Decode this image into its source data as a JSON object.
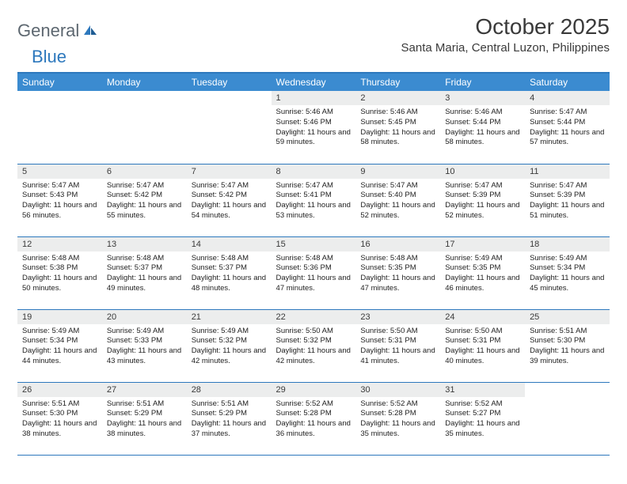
{
  "logo": {
    "part1": "General",
    "part2": "Blue"
  },
  "title": "October 2025",
  "location": "Santa Maria, Central Luzon, Philippines",
  "colors": {
    "header_bg": "#3b8bd0",
    "header_text": "#ffffff",
    "border": "#2d78bd",
    "daynum_bg": "#eceded",
    "text": "#3a3a3a",
    "logo_gray": "#5d6770",
    "logo_blue": "#2d78bd"
  },
  "week_headers": [
    "Sunday",
    "Monday",
    "Tuesday",
    "Wednesday",
    "Thursday",
    "Friday",
    "Saturday"
  ],
  "weeks": [
    [
      null,
      null,
      null,
      {
        "n": "1",
        "sunrise": "5:46 AM",
        "sunset": "5:46 PM",
        "daylight": "11 hours and 59 minutes."
      },
      {
        "n": "2",
        "sunrise": "5:46 AM",
        "sunset": "5:45 PM",
        "daylight": "11 hours and 58 minutes."
      },
      {
        "n": "3",
        "sunrise": "5:46 AM",
        "sunset": "5:44 PM",
        "daylight": "11 hours and 58 minutes."
      },
      {
        "n": "4",
        "sunrise": "5:47 AM",
        "sunset": "5:44 PM",
        "daylight": "11 hours and 57 minutes."
      }
    ],
    [
      {
        "n": "5",
        "sunrise": "5:47 AM",
        "sunset": "5:43 PM",
        "daylight": "11 hours and 56 minutes."
      },
      {
        "n": "6",
        "sunrise": "5:47 AM",
        "sunset": "5:42 PM",
        "daylight": "11 hours and 55 minutes."
      },
      {
        "n": "7",
        "sunrise": "5:47 AM",
        "sunset": "5:42 PM",
        "daylight": "11 hours and 54 minutes."
      },
      {
        "n": "8",
        "sunrise": "5:47 AM",
        "sunset": "5:41 PM",
        "daylight": "11 hours and 53 minutes."
      },
      {
        "n": "9",
        "sunrise": "5:47 AM",
        "sunset": "5:40 PM",
        "daylight": "11 hours and 52 minutes."
      },
      {
        "n": "10",
        "sunrise": "5:47 AM",
        "sunset": "5:39 PM",
        "daylight": "11 hours and 52 minutes."
      },
      {
        "n": "11",
        "sunrise": "5:47 AM",
        "sunset": "5:39 PM",
        "daylight": "11 hours and 51 minutes."
      }
    ],
    [
      {
        "n": "12",
        "sunrise": "5:48 AM",
        "sunset": "5:38 PM",
        "daylight": "11 hours and 50 minutes."
      },
      {
        "n": "13",
        "sunrise": "5:48 AM",
        "sunset": "5:37 PM",
        "daylight": "11 hours and 49 minutes."
      },
      {
        "n": "14",
        "sunrise": "5:48 AM",
        "sunset": "5:37 PM",
        "daylight": "11 hours and 48 minutes."
      },
      {
        "n": "15",
        "sunrise": "5:48 AM",
        "sunset": "5:36 PM",
        "daylight": "11 hours and 47 minutes."
      },
      {
        "n": "16",
        "sunrise": "5:48 AM",
        "sunset": "5:35 PM",
        "daylight": "11 hours and 47 minutes."
      },
      {
        "n": "17",
        "sunrise": "5:49 AM",
        "sunset": "5:35 PM",
        "daylight": "11 hours and 46 minutes."
      },
      {
        "n": "18",
        "sunrise": "5:49 AM",
        "sunset": "5:34 PM",
        "daylight": "11 hours and 45 minutes."
      }
    ],
    [
      {
        "n": "19",
        "sunrise": "5:49 AM",
        "sunset": "5:34 PM",
        "daylight": "11 hours and 44 minutes."
      },
      {
        "n": "20",
        "sunrise": "5:49 AM",
        "sunset": "5:33 PM",
        "daylight": "11 hours and 43 minutes."
      },
      {
        "n": "21",
        "sunrise": "5:49 AM",
        "sunset": "5:32 PM",
        "daylight": "11 hours and 42 minutes."
      },
      {
        "n": "22",
        "sunrise": "5:50 AM",
        "sunset": "5:32 PM",
        "daylight": "11 hours and 42 minutes."
      },
      {
        "n": "23",
        "sunrise": "5:50 AM",
        "sunset": "5:31 PM",
        "daylight": "11 hours and 41 minutes."
      },
      {
        "n": "24",
        "sunrise": "5:50 AM",
        "sunset": "5:31 PM",
        "daylight": "11 hours and 40 minutes."
      },
      {
        "n": "25",
        "sunrise": "5:51 AM",
        "sunset": "5:30 PM",
        "daylight": "11 hours and 39 minutes."
      }
    ],
    [
      {
        "n": "26",
        "sunrise": "5:51 AM",
        "sunset": "5:30 PM",
        "daylight": "11 hours and 38 minutes."
      },
      {
        "n": "27",
        "sunrise": "5:51 AM",
        "sunset": "5:29 PM",
        "daylight": "11 hours and 38 minutes."
      },
      {
        "n": "28",
        "sunrise": "5:51 AM",
        "sunset": "5:29 PM",
        "daylight": "11 hours and 37 minutes."
      },
      {
        "n": "29",
        "sunrise": "5:52 AM",
        "sunset": "5:28 PM",
        "daylight": "11 hours and 36 minutes."
      },
      {
        "n": "30",
        "sunrise": "5:52 AM",
        "sunset": "5:28 PM",
        "daylight": "11 hours and 35 minutes."
      },
      {
        "n": "31",
        "sunrise": "5:52 AM",
        "sunset": "5:27 PM",
        "daylight": "11 hours and 35 minutes."
      },
      null
    ]
  ],
  "labels": {
    "sunrise": "Sunrise:",
    "sunset": "Sunset:",
    "daylight": "Daylight:"
  }
}
